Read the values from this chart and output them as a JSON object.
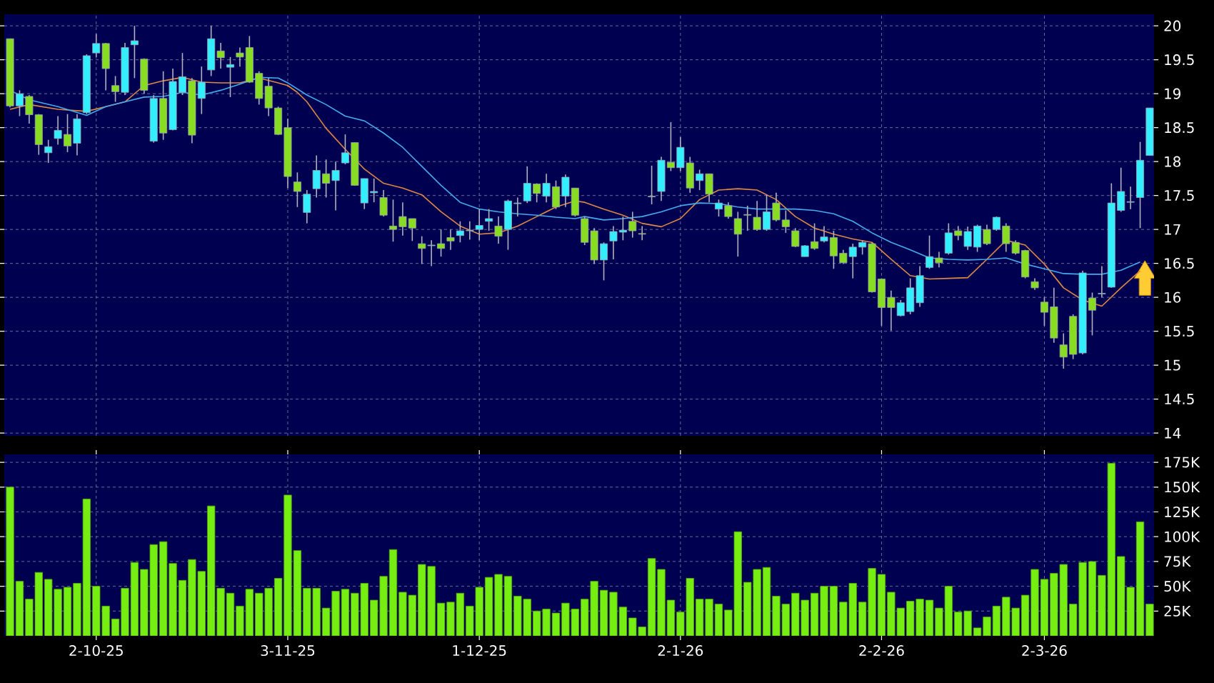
{
  "chart_data": [
    {
      "type": "candlestick",
      "categories": [
        null,
        null,
        null,
        null,
        null,
        null,
        null,
        null,
        null,
        null,
        null,
        null,
        null,
        null,
        null,
        null,
        null,
        null,
        null,
        null,
        null,
        null,
        null,
        null,
        null,
        null,
        null,
        null,
        null,
        null,
        null,
        null,
        null,
        null,
        null,
        null,
        null,
        null,
        null,
        null,
        null,
        null,
        null,
        null,
        null,
        null,
        null,
        null,
        null,
        null,
        null,
        null,
        null,
        null,
        null,
        null,
        null,
        null,
        null,
        null,
        null,
        null,
        null,
        null,
        null,
        null,
        null,
        null,
        null,
        null,
        null,
        null,
        null,
        null,
        null,
        null,
        null,
        null,
        null,
        null,
        null,
        null,
        null,
        null,
        null,
        null,
        null,
        null,
        null,
        null,
        null,
        null,
        null,
        null,
        null,
        null,
        null,
        null,
        null,
        null,
        null,
        null,
        null,
        null,
        null,
        null,
        null,
        null,
        null,
        null,
        null,
        null,
        null,
        null,
        null,
        null,
        null,
        null,
        null,
        null
      ],
      "ohlc": [
        [
          19.81,
          19.81,
          18.8,
          18.82
        ],
        [
          18.82,
          19.05,
          18.67,
          19.0
        ],
        [
          18.96,
          18.98,
          18.56,
          18.69
        ],
        [
          18.69,
          18.7,
          18.1,
          18.25
        ],
        [
          18.13,
          18.32,
          17.98,
          18.22
        ],
        [
          18.34,
          18.67,
          18.25,
          18.46
        ],
        [
          18.4,
          18.7,
          18.14,
          18.23
        ],
        [
          18.27,
          18.7,
          18.09,
          18.63
        ],
        [
          18.72,
          19.58,
          18.7,
          19.56
        ],
        [
          19.6,
          19.88,
          19.54,
          19.74
        ],
        [
          19.74,
          19.75,
          19.05,
          19.37
        ],
        [
          19.12,
          19.26,
          18.88,
          19.03
        ],
        [
          19.02,
          19.75,
          18.98,
          19.68
        ],
        [
          19.72,
          20.0,
          19.23,
          19.78
        ],
        [
          19.51,
          19.52,
          19.0,
          19.05
        ],
        [
          18.3,
          18.98,
          18.28,
          18.93
        ],
        [
          18.93,
          19.33,
          18.32,
          18.42
        ],
        [
          18.47,
          19.37,
          18.46,
          19.18
        ],
        [
          19.02,
          19.6,
          18.98,
          19.25
        ],
        [
          19.19,
          19.23,
          18.27,
          18.39
        ],
        [
          18.93,
          19.4,
          18.7,
          19.17
        ],
        [
          19.35,
          20.0,
          19.26,
          19.81
        ],
        [
          19.63,
          19.75,
          19.37,
          19.53
        ],
        [
          19.39,
          19.54,
          18.95,
          19.43
        ],
        [
          19.6,
          19.68,
          19.4,
          19.54
        ],
        [
          19.68,
          19.85,
          19.16,
          19.17
        ],
        [
          19.3,
          19.33,
          18.84,
          18.93
        ],
        [
          19.11,
          19.23,
          18.67,
          18.79
        ],
        [
          18.79,
          18.81,
          18.39,
          18.4
        ],
        [
          18.5,
          18.63,
          17.61,
          17.78
        ],
        [
          17.7,
          17.84,
          17.33,
          17.56
        ],
        [
          17.25,
          17.58,
          17.09,
          17.52
        ],
        [
          17.6,
          18.09,
          17.47,
          17.87
        ],
        [
          17.82,
          18.03,
          17.47,
          17.68
        ],
        [
          17.72,
          18.0,
          17.28,
          17.87
        ],
        [
          17.98,
          18.4,
          17.96,
          18.13
        ],
        [
          18.28,
          18.28,
          17.65,
          17.65
        ],
        [
          17.39,
          17.75,
          17.3,
          17.75
        ],
        [
          17.54,
          17.75,
          17.4,
          17.56
        ],
        [
          17.47,
          17.58,
          17.19,
          17.21
        ],
        [
          17.05,
          17.44,
          16.82,
          17.0
        ],
        [
          17.19,
          17.4,
          16.91,
          17.04
        ],
        [
          17.16,
          17.16,
          16.83,
          17.02
        ],
        [
          16.79,
          16.9,
          16.49,
          16.72
        ],
        [
          16.76,
          16.84,
          16.46,
          16.77
        ],
        [
          16.79,
          17.0,
          16.6,
          16.72
        ],
        [
          16.88,
          17.0,
          16.7,
          16.83
        ],
        [
          16.91,
          17.12,
          16.81,
          16.98
        ],
        [
          16.98,
          17.12,
          16.85,
          16.99
        ],
        [
          17.0,
          17.3,
          16.84,
          17.06
        ],
        [
          17.12,
          17.3,
          16.98,
          17.16
        ],
        [
          17.05,
          17.19,
          16.79,
          16.9
        ],
        [
          17.0,
          17.44,
          16.7,
          17.42
        ],
        [
          17.38,
          17.47,
          17.19,
          17.39
        ],
        [
          17.42,
          17.93,
          17.39,
          17.68
        ],
        [
          17.67,
          17.68,
          17.4,
          17.53
        ],
        [
          17.49,
          17.82,
          17.4,
          17.68
        ],
        [
          17.63,
          17.72,
          17.3,
          17.33
        ],
        [
          17.49,
          17.81,
          17.33,
          17.77
        ],
        [
          17.61,
          17.61,
          17.19,
          17.21
        ],
        [
          17.16,
          17.19,
          16.77,
          16.81
        ],
        [
          16.98,
          17.02,
          16.49,
          16.55
        ],
        [
          16.55,
          16.81,
          16.25,
          16.79
        ],
        [
          16.83,
          17.05,
          16.56,
          16.97
        ],
        [
          16.96,
          17.19,
          16.84,
          16.99
        ],
        [
          17.12,
          17.26,
          16.88,
          16.98
        ],
        [
          16.94,
          17.05,
          16.84,
          16.93
        ],
        [
          17.49,
          17.94,
          17.37,
          17.48
        ],
        [
          17.56,
          18.07,
          17.42,
          18.02
        ],
        [
          17.99,
          18.58,
          17.86,
          17.91
        ],
        [
          17.91,
          18.36,
          17.86,
          18.21
        ],
        [
          17.98,
          18.07,
          17.54,
          17.61
        ],
        [
          17.72,
          17.88,
          17.58,
          17.82
        ],
        [
          17.82,
          17.82,
          17.4,
          17.52
        ],
        [
          17.3,
          17.44,
          17.19,
          17.39
        ],
        [
          17.35,
          17.4,
          17.16,
          17.19
        ],
        [
          17.16,
          17.26,
          16.6,
          16.93
        ],
        [
          17.22,
          17.35,
          16.98,
          17.21
        ],
        [
          17.18,
          17.42,
          16.98,
          17.0
        ],
        [
          17.0,
          17.51,
          16.98,
          17.26
        ],
        [
          17.39,
          17.54,
          17.12,
          17.14
        ],
        [
          17.14,
          17.28,
          16.95,
          17.04
        ],
        [
          16.98,
          17.02,
          16.74,
          16.75
        ],
        [
          16.6,
          16.77,
          16.6,
          16.76
        ],
        [
          16.82,
          17.09,
          16.7,
          16.72
        ],
        [
          16.83,
          17.05,
          16.81,
          16.89
        ],
        [
          16.88,
          16.98,
          16.42,
          16.61
        ],
        [
          16.65,
          16.7,
          16.49,
          16.51
        ],
        [
          16.6,
          16.79,
          16.28,
          16.74
        ],
        [
          16.74,
          16.84,
          16.63,
          16.81
        ],
        [
          16.79,
          16.81,
          16.07,
          16.08
        ],
        [
          16.27,
          16.28,
          15.58,
          15.85
        ],
        [
          16.0,
          16.1,
          15.51,
          15.85
        ],
        [
          15.73,
          15.96,
          15.72,
          15.92
        ],
        [
          15.79,
          16.28,
          15.75,
          16.14
        ],
        [
          15.92,
          16.46,
          15.86,
          16.32
        ],
        [
          16.44,
          16.91,
          16.42,
          16.6
        ],
        [
          16.58,
          16.67,
          16.44,
          16.51
        ],
        [
          16.65,
          17.09,
          16.63,
          16.95
        ],
        [
          16.98,
          17.05,
          16.84,
          16.91
        ],
        [
          16.75,
          17.04,
          16.7,
          16.97
        ],
        [
          16.74,
          17.07,
          16.67,
          17.05
        ],
        [
          17.0,
          17.07,
          16.77,
          16.79
        ],
        [
          17.0,
          17.19,
          16.98,
          17.18
        ],
        [
          17.05,
          17.09,
          16.67,
          16.79
        ],
        [
          16.81,
          16.84,
          16.63,
          16.65
        ],
        [
          16.69,
          16.7,
          16.28,
          16.3
        ],
        [
          16.23,
          16.28,
          16.11,
          16.14
        ],
        [
          15.93,
          16.0,
          15.58,
          15.78
        ],
        [
          15.86,
          16.14,
          15.33,
          15.4
        ],
        [
          15.3,
          15.47,
          14.95,
          15.12
        ],
        [
          15.72,
          15.75,
          15.09,
          15.16
        ],
        [
          15.18,
          16.39,
          15.16,
          16.36
        ],
        [
          15.99,
          16.07,
          15.44,
          15.81
        ],
        [
          16.05,
          16.46,
          16.0,
          16.06
        ],
        [
          16.15,
          17.68,
          16.14,
          17.39
        ],
        [
          17.28,
          17.91,
          17.26,
          17.56
        ],
        [
          17.4,
          17.63,
          17.3,
          17.41
        ],
        [
          17.47,
          18.29,
          17.02,
          18.02
        ],
        [
          18.09,
          18.79,
          18.09,
          18.79
        ]
      ],
      "series": [
        {
          "type": "line",
          "color": "#dd8844",
          "values": [
            18.77,
            null,
            18.84,
            null,
            null,
            18.77,
            null,
            null,
            18.74,
            null,
            18.81,
            null,
            18.88,
            null,
            19.12,
            null,
            19.19,
            null,
            19.24,
            null,
            19.17,
            null,
            19.16,
            null,
            19.16,
            null,
            19.23,
            null,
            19.16,
            19.12,
            19.02,
            18.88,
            null,
            18.49,
            null,
            18.18,
            null,
            17.89,
            null,
            17.68,
            null,
            17.61,
            null,
            17.51,
            null,
            17.26,
            null,
            17.05,
            null,
            16.93,
            null,
            16.95,
            null,
            17.05,
            null,
            17.19,
            null,
            17.33,
            null,
            17.42,
            17.4,
            null,
            17.3,
            null,
            17.21,
            null,
            17.09,
            null,
            17.04,
            null,
            17.16,
            null,
            17.44,
            null,
            17.58,
            null,
            17.6,
            null,
            17.58,
            null,
            17.44,
            null,
            17.19,
            null,
            17.02,
            null,
            16.93,
            null,
            16.86,
            null,
            16.81,
            null,
            16.56,
            null,
            16.32,
            null,
            16.27,
            null,
            16.28,
            null,
            16.29,
            null,
            16.56,
            null,
            16.84,
            null,
            16.77,
            null,
            16.49,
            null,
            16.14,
            null,
            15.96,
            null,
            15.87,
            null,
            16.14,
            null,
            16.39,
            null
          ]
        },
        {
          "type": "line",
          "color": "#44aaee",
          "values": [
            19.05,
            null,
            18.91,
            null,
            null,
            18.81,
            null,
            null,
            18.68,
            null,
            18.81,
            null,
            18.88,
            null,
            18.95,
            null,
            18.96,
            null,
            19.02,
            null,
            18.98,
            null,
            19.05,
            null,
            19.14,
            null,
            19.24,
            null,
            19.23,
            19.16,
            null,
            18.98,
            null,
            18.84,
            null,
            18.67,
            null,
            18.6,
            null,
            18.42,
            null,
            18.21,
            null,
            17.93,
            null,
            17.65,
            null,
            17.4,
            null,
            17.3,
            null,
            17.26,
            null,
            17.23,
            null,
            17.21,
            null,
            17.18,
            null,
            17.16,
            17.19,
            null,
            17.14,
            null,
            17.16,
            null,
            17.19,
            null,
            17.26,
            null,
            17.35,
            null,
            17.39,
            null,
            17.38,
            null,
            17.33,
            null,
            17.3,
            null,
            17.3,
            null,
            17.3,
            null,
            17.28,
            null,
            17.23,
            null,
            17.12,
            null,
            16.95,
            null,
            16.81,
            null,
            16.7,
            null,
            16.58,
            null,
            16.56,
            null,
            16.55,
            null,
            16.56,
            null,
            16.58,
            null,
            16.49,
            null,
            16.42,
            null,
            16.35,
            null,
            16.34,
            null,
            16.34,
            null,
            16.4,
            null,
            16.52,
            null
          ]
        }
      ],
      "ylim": [
        13.96,
        20.17
      ],
      "yticks": [
        14,
        14.5,
        15,
        15.5,
        16,
        16.5,
        17,
        17.5,
        18,
        18.5,
        19,
        19.5,
        20
      ],
      "grid": true,
      "tick_labels": "y"
    },
    {
      "type": "bar",
      "categories": [
        null,
        null,
        null,
        null,
        null,
        null,
        null,
        null,
        null,
        "2-10-25",
        null,
        null,
        null,
        null,
        null,
        null,
        null,
        null,
        null,
        null,
        null,
        null,
        null,
        null,
        null,
        null,
        null,
        null,
        null,
        "3-11-25",
        null,
        null,
        null,
        null,
        null,
        null,
        null,
        null,
        null,
        null,
        null,
        null,
        null,
        null,
        null,
        null,
        null,
        null,
        null,
        "1-12-25",
        null,
        null,
        null,
        null,
        null,
        null,
        null,
        null,
        null,
        null,
        null,
        null,
        null,
        null,
        null,
        null,
        null,
        null,
        null,
        null,
        "2-1-26",
        null,
        null,
        null,
        null,
        null,
        null,
        null,
        null,
        null,
        null,
        null,
        null,
        null,
        null,
        null,
        null,
        null,
        null,
        null,
        null,
        "2-2-26",
        null,
        null,
        null,
        null,
        null,
        null,
        null,
        null,
        null,
        null,
        null,
        null,
        null,
        null,
        null,
        null,
        "2-3-26",
        null,
        null,
        null,
        null,
        null,
        null,
        null,
        null,
        null,
        null,
        null
      ],
      "values": [
        150000,
        55000,
        37000,
        64000,
        57000,
        47000,
        49000,
        53000,
        138000,
        50000,
        30000,
        17000,
        48000,
        74000,
        67000,
        92000,
        95000,
        73000,
        56000,
        77000,
        65000,
        131000,
        48000,
        43000,
        30000,
        47000,
        43000,
        48000,
        58000,
        142000,
        86000,
        48000,
        48000,
        28000,
        45000,
        47000,
        43000,
        53000,
        36000,
        60000,
        87000,
        44000,
        41000,
        72000,
        70000,
        33000,
        34000,
        43000,
        30000,
        49000,
        59000,
        62000,
        60000,
        40000,
        37000,
        25000,
        27000,
        23000,
        33000,
        27000,
        37000,
        55000,
        46000,
        44000,
        29000,
        18000,
        9000,
        78000,
        67000,
        36000,
        24000,
        58000,
        37000,
        37000,
        32000,
        26000,
        105000,
        54000,
        67000,
        69000,
        40000,
        32000,
        43000,
        36000,
        43000,
        50000,
        50000,
        34000,
        53000,
        34000,
        68000,
        62000,
        44000,
        28000,
        35000,
        37000,
        36000,
        28000,
        50000,
        24000,
        25000,
        8000,
        19000,
        30000,
        39000,
        28000,
        41000,
        67000,
        57000,
        63000,
        72000,
        32000,
        74000,
        75000,
        61000,
        174000,
        80000,
        49000,
        115000,
        32000
      ],
      "color": "#77ee11",
      "ylim": [
        0,
        183000
      ],
      "yticks": [
        {
          "value": 25000,
          "label": "25K"
        },
        {
          "value": 50000,
          "label": "50K"
        },
        {
          "value": 75000,
          "label": "75K"
        },
        {
          "value": 100000,
          "label": "100K"
        },
        {
          "value": 125000,
          "label": "125K"
        },
        {
          "value": 150000,
          "label": "150K"
        },
        {
          "value": 175000,
          "label": "175K"
        }
      ],
      "grid": true
    }
  ]
}
